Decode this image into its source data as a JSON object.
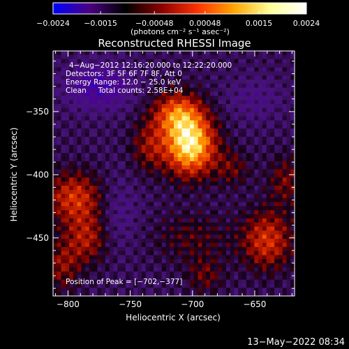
{
  "chart_data": {
    "type": "heatmap",
    "title": "Reconstructed RHESSI Image",
    "xlabel": "Heliocentric X (arcsec)",
    "ylabel": "Heliocentric Y (arcsec)",
    "xlim": [
      -812,
      -618
    ],
    "ylim": [
      -496,
      -302
    ],
    "x_ticks": [
      -800,
      -750,
      -700,
      -650
    ],
    "x_tick_labels": [
      "−800",
      "−750",
      "−700",
      "−650"
    ],
    "y_ticks": [
      -450,
      -400,
      -350
    ],
    "y_tick_labels": [
      "−450",
      "−400",
      "−350"
    ],
    "colorbar": {
      "range": [
        -0.0024,
        0.0024
      ],
      "ticks": [
        -0.0024,
        -0.0015,
        -0.00048,
        0.00048,
        0.0015,
        0.0024
      ],
      "tick_labels": [
        "−0.0024",
        "−0.0015",
        "−0.00048",
        "0.00048",
        "0.0015",
        "0.0024"
      ],
      "unit_label": "(photons cm⁻² s⁻¹ asec⁻²)",
      "colors": [
        "#0000ff",
        "#4b0082",
        "#000000",
        "#8b0000",
        "#ff3300",
        "#ffa500",
        "#ffff99",
        "#ffffff"
      ]
    },
    "info_lines": [
      "4−Aug−2012 12:16:20.000 to 12:22:20.000",
      "Detectors: 3F 5F 6F 7F 8F, Att 0",
      "Energy Range: 12.0 − 25.0 keV",
      "Clean     Total counts: 2.58E+04"
    ],
    "peak_label": "Position of Peak = [−702,−377]",
    "peak": [
      -702,
      -377
    ],
    "sources": [
      {
        "x": -702,
        "y": -377,
        "amp": 0.0026,
        "sx": 14,
        "sy": 16
      },
      {
        "x": -712,
        "y": -352,
        "amp": 0.0016,
        "sx": 14,
        "sy": 12
      },
      {
        "x": -735,
        "y": -378,
        "amp": 0.0008,
        "sx": 10,
        "sy": 14
      },
      {
        "x": -795,
        "y": -418,
        "amp": 0.0013,
        "sx": 16,
        "sy": 14
      },
      {
        "x": -785,
        "y": -450,
        "amp": 0.001,
        "sx": 12,
        "sy": 14
      },
      {
        "x": -805,
        "y": -472,
        "amp": 0.0008,
        "sx": 10,
        "sy": 14
      },
      {
        "x": -640,
        "y": -452,
        "amp": 0.0013,
        "sx": 14,
        "sy": 16
      },
      {
        "x": -625,
        "y": -405,
        "amp": 0.0007,
        "sx": 10,
        "sy": 14
      },
      {
        "x": -668,
        "y": -395,
        "amp": 0.0006,
        "sx": 10,
        "sy": 10
      },
      {
        "x": -700,
        "y": -450,
        "amp": 0.0005,
        "sx": 22,
        "sy": 14
      },
      {
        "x": -690,
        "y": -480,
        "amp": 0.0006,
        "sx": 10,
        "sy": 10
      },
      {
        "x": -775,
        "y": -330,
        "amp": -0.0011,
        "sx": 18,
        "sy": 12
      },
      {
        "x": -760,
        "y": -430,
        "amp": -0.0004,
        "sx": 12,
        "sy": 20
      },
      {
        "x": -650,
        "y": -340,
        "amp": -0.0004,
        "sx": 16,
        "sy": 12
      }
    ],
    "background": -0.0005,
    "ripple": 0.0004
  },
  "footer": {
    "timestamp": "13−May−2022 08:34"
  }
}
